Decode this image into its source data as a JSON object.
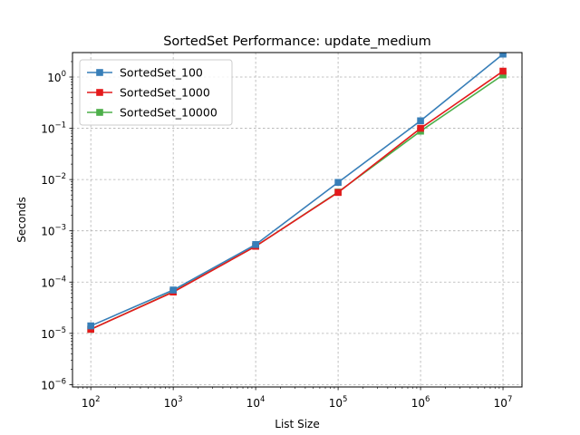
{
  "chart_data": {
    "type": "line",
    "title": "SortedSet Performance: update_medium",
    "xlabel": "List Size",
    "ylabel": "Seconds",
    "xscale": "log",
    "yscale": "log",
    "xlim": [
      60,
      17000000
    ],
    "ylim": [
      9e-07,
      3
    ],
    "x_ticks": [
      100,
      1000,
      10000,
      100000,
      1000000,
      10000000
    ],
    "x_tick_labels": [
      {
        "base": "10",
        "exp": "2"
      },
      {
        "base": "10",
        "exp": "3"
      },
      {
        "base": "10",
        "exp": "4"
      },
      {
        "base": "10",
        "exp": "5"
      },
      {
        "base": "10",
        "exp": "6"
      },
      {
        "base": "10",
        "exp": "7"
      }
    ],
    "y_ticks": [
      1e-06,
      1e-05,
      0.0001,
      0.001,
      0.01,
      0.1,
      1
    ],
    "y_tick_labels": [
      {
        "base": "10",
        "exp": "−6"
      },
      {
        "base": "10",
        "exp": "−5"
      },
      {
        "base": "10",
        "exp": "−4"
      },
      {
        "base": "10",
        "exp": "−3"
      },
      {
        "base": "10",
        "exp": "−2"
      },
      {
        "base": "10",
        "exp": "−1"
      },
      {
        "base": "10",
        "exp": "0"
      }
    ],
    "grid": true,
    "legend_position": "upper-left",
    "x": [
      100,
      1000,
      10000,
      100000,
      1000000,
      10000000
    ],
    "series": [
      {
        "name": "SortedSet_100",
        "color": "#377eb8",
        "marker": "square",
        "values": [
          1.4e-05,
          7e-05,
          0.00054,
          0.0088,
          0.14,
          2.8
        ]
      },
      {
        "name": "SortedSet_1000",
        "color": "#e41a1c",
        "marker": "square",
        "values": [
          1.2e-05,
          6.4e-05,
          0.0005,
          0.0056,
          0.1,
          1.3
        ]
      },
      {
        "name": "SortedSet_10000",
        "color": "#4daf4a",
        "marker": "square",
        "values": [
          1.2e-05,
          6.5e-05,
          0.0005,
          0.0057,
          0.088,
          1.1
        ]
      }
    ]
  }
}
